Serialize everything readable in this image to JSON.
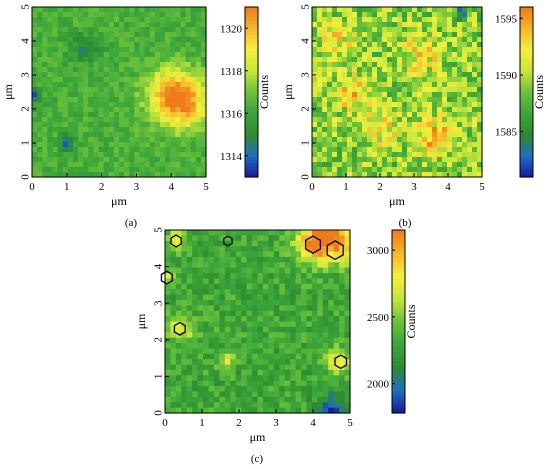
{
  "colorscale": [
    "#1a1a9a",
    "#1f6fc0",
    "#2e8b2e",
    "#3aa63a",
    "#6cc23a",
    "#c8e63a",
    "#f5f03a",
    "#f5b52a",
    "#f07a1a"
  ],
  "chart_data": [
    {
      "type": "heatmap",
      "panel_label": "(a)",
      "xlabel": "μm",
      "ylabel": "μm",
      "xlim": [
        0,
        5
      ],
      "ylim": [
        0,
        5
      ],
      "x_ticks": [
        "0",
        "1",
        "2",
        "3",
        "4",
        "5"
      ],
      "y_ticks": [
        "0",
        "1",
        "2",
        "3",
        "4",
        "5"
      ],
      "colorbar_label": "Counts",
      "colorbar_range": [
        1313,
        1321
      ],
      "colorbar_ticks": [
        "1314",
        "1316",
        "1318",
        "1320"
      ],
      "features": [
        {
          "x": 4.3,
          "y": 2.2,
          "value": 1320.5,
          "spread": 0.55
        },
        {
          "x": 3.9,
          "y": 2.6,
          "value": 1318.0,
          "spread": 0.5
        },
        {
          "x": 1.0,
          "y": 1.0,
          "value": 1313.5,
          "spread": 0.15
        },
        {
          "x": 0.0,
          "y": 2.4,
          "value": 1313.5,
          "spread": 0.15
        },
        {
          "x": 1.5,
          "y": 3.8,
          "value": 1314.8,
          "spread": 0.3
        }
      ],
      "baseline": 1316.3
    },
    {
      "type": "heatmap",
      "panel_label": "(b)",
      "xlabel": "μm",
      "ylabel": "μm",
      "xlim": [
        0,
        5
      ],
      "ylim": [
        0,
        5
      ],
      "x_ticks": [
        "0",
        "1",
        "2",
        "3",
        "4",
        "5"
      ],
      "y_ticks": [
        "0",
        "1",
        "2",
        "3",
        "4",
        "5"
      ],
      "colorbar_label": "Counts",
      "colorbar_range": [
        1581,
        1596
      ],
      "colorbar_ticks": [
        "1585",
        "1590",
        "1595"
      ],
      "features": [
        {
          "x": 4.4,
          "y": 4.8,
          "value": 1581.5,
          "spread": 0.12
        },
        {
          "x": 1.2,
          "y": 2.5,
          "value": 1594.0,
          "spread": 0.35
        },
        {
          "x": 3.6,
          "y": 1.2,
          "value": 1594.0,
          "spread": 0.4
        },
        {
          "x": 3.2,
          "y": 3.6,
          "value": 1592.5,
          "spread": 0.45
        },
        {
          "x": 0.8,
          "y": 4.0,
          "value": 1592.0,
          "spread": 0.4
        },
        {
          "x": 2.0,
          "y": 1.5,
          "value": 1593.0,
          "spread": 0.4
        }
      ],
      "baseline": 1589.0
    },
    {
      "type": "heatmap",
      "panel_label": "(c)",
      "xlabel": "μm",
      "ylabel": "μm",
      "xlim": [
        0,
        5
      ],
      "ylim": [
        0,
        5
      ],
      "x_ticks": [
        "0",
        "1",
        "2",
        "3",
        "4",
        "5"
      ],
      "y_ticks": [
        "0",
        "1",
        "2",
        "3",
        "4",
        "5"
      ],
      "colorbar_label": "Counts",
      "colorbar_range": [
        1780,
        3150
      ],
      "colorbar_ticks": [
        "2000",
        "2500",
        "3000"
      ],
      "features": [
        {
          "x": 4.6,
          "y": 4.8,
          "value": 3100,
          "spread": 0.45
        },
        {
          "x": 4.0,
          "y": 4.6,
          "value": 2900,
          "spread": 0.35
        },
        {
          "x": 0.4,
          "y": 2.3,
          "value": 2750,
          "spread": 0.25
        },
        {
          "x": 0.3,
          "y": 4.7,
          "value": 2700,
          "spread": 0.2
        },
        {
          "x": 0.0,
          "y": 3.7,
          "value": 2650,
          "spread": 0.2
        },
        {
          "x": 4.7,
          "y": 1.4,
          "value": 2800,
          "spread": 0.25
        },
        {
          "x": 1.7,
          "y": 1.4,
          "value": 2700,
          "spread": 0.15
        },
        {
          "x": 4.5,
          "y": 0.05,
          "value": 1800,
          "spread": 0.3
        }
      ],
      "baseline": 2300,
      "markers": [
        {
          "x": 0.3,
          "y": 4.7,
          "size": 0.16
        },
        {
          "x": 1.7,
          "y": 4.7,
          "size": 0.13
        },
        {
          "x": 0.05,
          "y": 3.7,
          "size": 0.17
        },
        {
          "x": 0.4,
          "y": 2.3,
          "size": 0.17
        },
        {
          "x": 4.0,
          "y": 4.6,
          "size": 0.23
        },
        {
          "x": 4.6,
          "y": 4.45,
          "size": 0.25
        },
        {
          "x": 4.75,
          "y": 1.4,
          "size": 0.18
        }
      ]
    }
  ]
}
